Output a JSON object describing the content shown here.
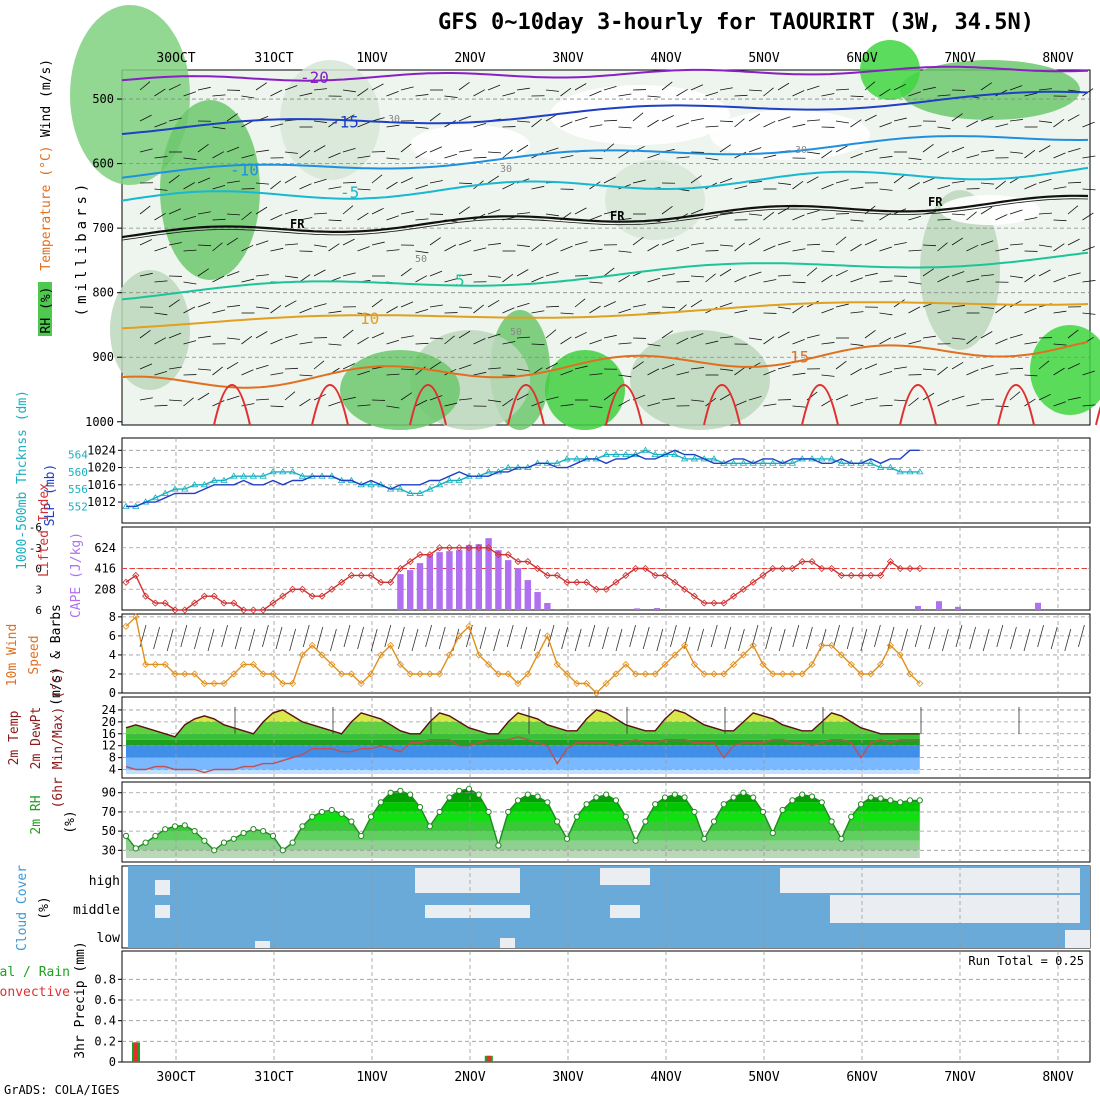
{
  "title": "GFS 0~10day 3-hourly for TAOURIRT (3W, 34.5N)",
  "credit": "GrADS: COLA/IGES",
  "dates": [
    "30OCT",
    "31OCT",
    "1NOV",
    "2NOV",
    "3NOV",
    "4NOV",
    "5NOV",
    "6NOV",
    "7NOV",
    "8NOV"
  ],
  "panels": {
    "upper": {
      "label_rh": "RH (%)",
      "label_temp": "Temperature (°C)",
      "label_wind": "Wind (m/s)",
      "label_mb": "(millibars)",
      "levels": [
        "500",
        "600",
        "700",
        "800",
        "900",
        "1000"
      ],
      "freezing_label": "FR",
      "contours": [
        {
          "label": "-20",
          "color": "#8a1fc4"
        },
        {
          "label": "-15",
          "color": "#1f3fc4"
        },
        {
          "label": "-10",
          "color": "#1e90e0"
        },
        {
          "label": "-5",
          "color": "#18b8d0"
        },
        {
          "label": "5",
          "color": "#1cc49a"
        },
        {
          "label": "10",
          "color": "#e0a020"
        },
        {
          "label": "15",
          "color": "#e07020"
        }
      ],
      "rh_contour_labels": [
        "30",
        "50"
      ]
    },
    "slp": {
      "label_thk": "1000-500mb Thcknss (dm)",
      "label_slp": "SLP (mb)",
      "thk_ticks": [
        "552",
        "556",
        "560",
        "564"
      ],
      "slp_ticks": [
        "1012",
        "1016",
        "1020",
        "1024"
      ]
    },
    "cape": {
      "label_li": "Lifted Index",
      "label_cape": "CAPE (J/kg)",
      "li_ticks": [
        "-6",
        "-3",
        "0",
        "3",
        "6"
      ],
      "cape_ticks": [
        "208",
        "416",
        "624"
      ]
    },
    "wind10": {
      "label_a": "10m Wind",
      "label_b": "Speed",
      "label_c": "(m/s) & Barbs",
      "ticks": [
        "0",
        "2",
        "4",
        "6",
        "8"
      ]
    },
    "temp2m": {
      "label_a": "2m Temp",
      "label_b": "2m DewPt",
      "label_c": "(6hr Min/Max) (°C)",
      "ticks": [
        "4",
        "8",
        "12",
        "16",
        "20",
        "24"
      ]
    },
    "rh2m": {
      "label_a": "2m RH",
      "label_b": "(%)",
      "ticks": [
        "30",
        "50",
        "70",
        "90"
      ]
    },
    "cloud": {
      "label_a": "Cloud Cover",
      "label_b": "(%)",
      "rows": [
        "high",
        "middle",
        "low"
      ]
    },
    "precip": {
      "label_a": "Total / Rain",
      "label_b": "Convective",
      "label_c": "3hr Precip (mm)",
      "ticks": [
        "0",
        "0.2",
        "0.4",
        "0.6",
        "0.8"
      ],
      "run_total": "Run Total = 0.25"
    }
  },
  "chart_data": {
    "type": "line",
    "x_start": "29OCT 18Z",
    "x_step_hours": 3,
    "series": [
      {
        "name": "SLP (mb)",
        "color": "#1f3fc4",
        "values": [
          1011,
          1011,
          1012,
          1012,
          1013,
          1014,
          1014,
          1014,
          1015,
          1016,
          1016,
          1016,
          1017,
          1016,
          1016,
          1017,
          1016,
          1017,
          1017,
          1018,
          1018,
          1018,
          1017,
          1017,
          1016,
          1017,
          1016,
          1015,
          1016,
          1016,
          1016,
          1017,
          1017,
          1018,
          1019,
          1018,
          1018,
          1018,
          1019,
          1019,
          1020,
          1020,
          1021,
          1021,
          1020,
          1020,
          1021,
          1022,
          1022,
          1021,
          1022,
          1022,
          1023,
          1022,
          1022,
          1023,
          1024,
          1023,
          1023,
          1022,
          1021,
          1021,
          1022,
          1022,
          1021,
          1022,
          1022,
          1021,
          1022,
          1022,
          1022,
          1021,
          1021,
          1022,
          1021,
          1021,
          1022,
          1021,
          1022,
          1022,
          1024,
          1024
        ]
      },
      {
        "name": "1000-500mb Thcknss (dm)",
        "color": "#18b0c0",
        "values": [
          552,
          552,
          553,
          554,
          555,
          556,
          556,
          557,
          557,
          558,
          558,
          559,
          559,
          559,
          559,
          560,
          560,
          560,
          559,
          559,
          559,
          559,
          558,
          558,
          557,
          557,
          557,
          556,
          556,
          555,
          555,
          556,
          557,
          558,
          558,
          559,
          559,
          560,
          560,
          561,
          561,
          561,
          562,
          562,
          562,
          563,
          563,
          563,
          563,
          564,
          564,
          564,
          564,
          565,
          564,
          564,
          564,
          563,
          563,
          563,
          563,
          562,
          562,
          562,
          562,
          562,
          562,
          562,
          562,
          563,
          563,
          563,
          563,
          562,
          562,
          562,
          562,
          561,
          561,
          560,
          560,
          560
        ]
      },
      {
        "name": "CAPE (J/kg)",
        "color": "#b070f0",
        "values": [
          0,
          0,
          0,
          0,
          0,
          0,
          0,
          0,
          0,
          0,
          0,
          0,
          0,
          0,
          0,
          0,
          0,
          0,
          0,
          0,
          0,
          0,
          0,
          0,
          0,
          0,
          0,
          0,
          360,
          400,
          470,
          550,
          580,
          590,
          600,
          650,
          660,
          720,
          600,
          500,
          420,
          300,
          180,
          70,
          10,
          0,
          0,
          0,
          0,
          0,
          0,
          0,
          0,
          0,
          0,
          0,
          0,
          0,
          0,
          0,
          0,
          0,
          0,
          0,
          0,
          0,
          0,
          0,
          0,
          0,
          0,
          0,
          0,
          0,
          0,
          0,
          0,
          0,
          0,
          0,
          0,
          0
        ]
      },
      {
        "name": "Lifted Index",
        "color": "#d03030",
        "values": [
          2,
          1,
          4,
          5,
          5,
          6,
          6,
          5,
          4,
          4,
          5,
          5,
          6,
          6,
          6,
          5,
          4,
          3,
          3,
          4,
          4,
          3,
          2,
          1,
          1,
          1,
          2,
          2,
          0,
          -1,
          -2,
          -2,
          -3,
          -3,
          -3,
          -3,
          -3,
          -3,
          -2,
          -2,
          -1,
          -1,
          0,
          1,
          1,
          2,
          2,
          2,
          3,
          3,
          2,
          1,
          0,
          0,
          1,
          1,
          2,
          3,
          4,
          5,
          5,
          5,
          4,
          3,
          2,
          1,
          0,
          0,
          0,
          -1,
          -1,
          0,
          0,
          1,
          1,
          1,
          1,
          1,
          -1,
          0,
          0,
          0
        ]
      },
      {
        "name": "10m Wind Speed (m/s)",
        "color": "#e09020",
        "values": [
          7,
          8,
          3,
          3,
          3,
          2,
          2,
          2,
          1,
          1,
          1,
          2,
          3,
          3,
          2,
          2,
          1,
          1,
          4,
          5,
          4,
          3,
          2,
          2,
          1,
          2,
          4,
          5,
          3,
          2,
          2,
          2,
          2,
          4,
          6,
          7,
          4,
          3,
          2,
          2,
          1,
          2,
          4,
          6,
          3,
          2,
          1,
          1,
          0,
          1,
          2,
          3,
          2,
          2,
          2,
          3,
          4,
          5,
          3,
          2,
          2,
          2,
          3,
          4,
          5,
          3,
          2,
          2,
          2,
          2,
          3,
          5,
          5,
          4,
          3,
          2,
          2,
          3,
          5,
          4,
          2,
          1
        ]
      },
      {
        "name": "2m Temp (°C)",
        "color": "#8b1a1a",
        "values": [
          18,
          19,
          18,
          17,
          16,
          15,
          19,
          21,
          22,
          21,
          19,
          18,
          17,
          16,
          20,
          23,
          24,
          22,
          20,
          19,
          18,
          17,
          16,
          20,
          23,
          22,
          21,
          19,
          17,
          16,
          16,
          20,
          23,
          22,
          20,
          18,
          17,
          16,
          16,
          20,
          23,
          22,
          21,
          19,
          18,
          17,
          17,
          21,
          24,
          23,
          21,
          19,
          18,
          17,
          17,
          21,
          24,
          23,
          21,
          19,
          18,
          17,
          17,
          20,
          23,
          22,
          21,
          19,
          18,
          17,
          17,
          20,
          23,
          22,
          20,
          18,
          17,
          16,
          16,
          16,
          16,
          16
        ]
      },
      {
        "name": "2m DewPt (°C)",
        "color": "#c05050",
        "values": [
          5,
          4,
          4,
          5,
          5,
          4,
          4,
          4,
          3,
          4,
          4,
          4,
          5,
          5,
          6,
          6,
          7,
          8,
          9,
          11,
          11,
          11,
          10,
          10,
          11,
          11,
          12,
          11,
          10,
          13,
          13,
          14,
          14,
          14,
          12,
          12,
          13,
          14,
          14,
          14,
          15,
          14,
          13,
          12,
          6,
          11,
          13,
          13,
          13,
          13,
          12,
          13,
          14,
          13,
          13,
          14,
          14,
          14,
          13,
          13,
          13,
          8,
          12,
          13,
          13,
          13,
          14,
          14,
          13,
          13,
          12,
          13,
          14,
          14,
          13,
          8,
          13,
          14,
          13,
          14,
          14,
          14
        ]
      },
      {
        "name": "2m RH (%)",
        "color": "#208a20",
        "values": [
          45,
          32,
          38,
          45,
          52,
          55,
          56,
          50,
          40,
          30,
          38,
          42,
          48,
          52,
          50,
          45,
          30,
          38,
          55,
          65,
          70,
          72,
          68,
          60,
          45,
          65,
          80,
          90,
          92,
          88,
          75,
          55,
          70,
          85,
          92,
          94,
          88,
          70,
          35,
          70,
          82,
          88,
          86,
          80,
          60,
          42,
          65,
          78,
          85,
          88,
          82,
          65,
          40,
          60,
          78,
          85,
          88,
          85,
          70,
          42,
          60,
          78,
          85,
          90,
          85,
          70,
          48,
          72,
          82,
          88,
          86,
          80,
          60,
          42,
          65,
          78,
          85,
          84,
          82,
          80,
          82,
          82
        ]
      },
      {
        "name": "3hr Precip (mm)",
        "color": "#20a020",
        "values": [
          0.19,
          0,
          0,
          0,
          0,
          0,
          0,
          0,
          0,
          0,
          0,
          0,
          0,
          0,
          0,
          0,
          0,
          0,
          0,
          0,
          0,
          0,
          0,
          0,
          0,
          0,
          0,
          0,
          0,
          0,
          0,
          0,
          0,
          0,
          0,
          0,
          0.06,
          0,
          0,
          0,
          0,
          0,
          0,
          0,
          0,
          0,
          0,
          0,
          0,
          0,
          0,
          0,
          0,
          0,
          0,
          0,
          0,
          0,
          0,
          0,
          0,
          0,
          0,
          0,
          0,
          0,
          0,
          0,
          0,
          0,
          0,
          0,
          0,
          0,
          0,
          0,
          0,
          0,
          0,
          0,
          0,
          0
        ]
      }
    ]
  }
}
